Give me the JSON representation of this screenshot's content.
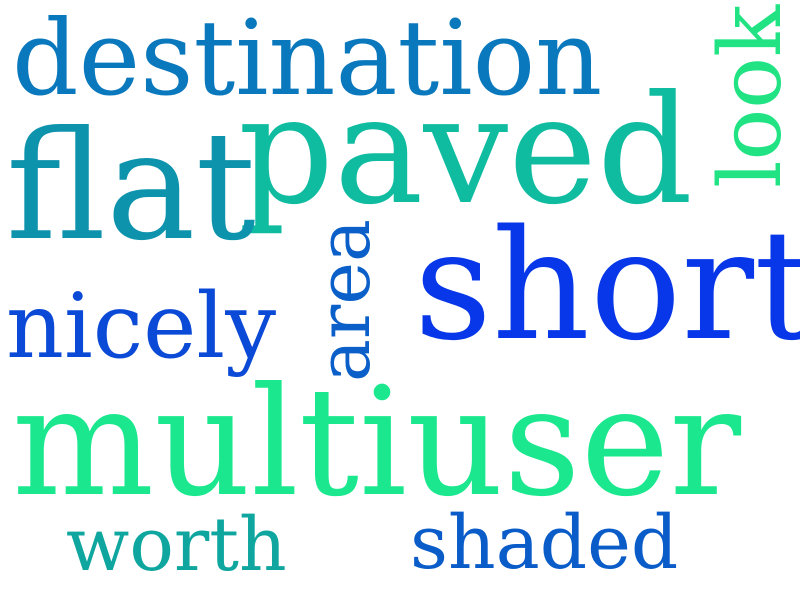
{
  "word_cloud": {
    "words": {
      "destination": {
        "text": "destination",
        "color": "#0a78bd"
      },
      "paved": {
        "text": "paved",
        "color": "#0fbca0"
      },
      "flat": {
        "text": "flat",
        "color": "#0e93ad"
      },
      "look": {
        "text": "look",
        "color": "#22e384"
      },
      "area": {
        "text": "area",
        "color": "#0a5fc8"
      },
      "short": {
        "text": "short",
        "color": "#0737e8"
      },
      "nicely": {
        "text": "nicely",
        "color": "#0b4ad6"
      },
      "multiuser": {
        "text": "multiuser",
        "color": "#1be88e"
      },
      "worth": {
        "text": "worth",
        "color": "#0ea69e"
      },
      "shaded": {
        "text": "shaded",
        "color": "#0a5cc9"
      }
    },
    "background_color": "#ffffff"
  }
}
